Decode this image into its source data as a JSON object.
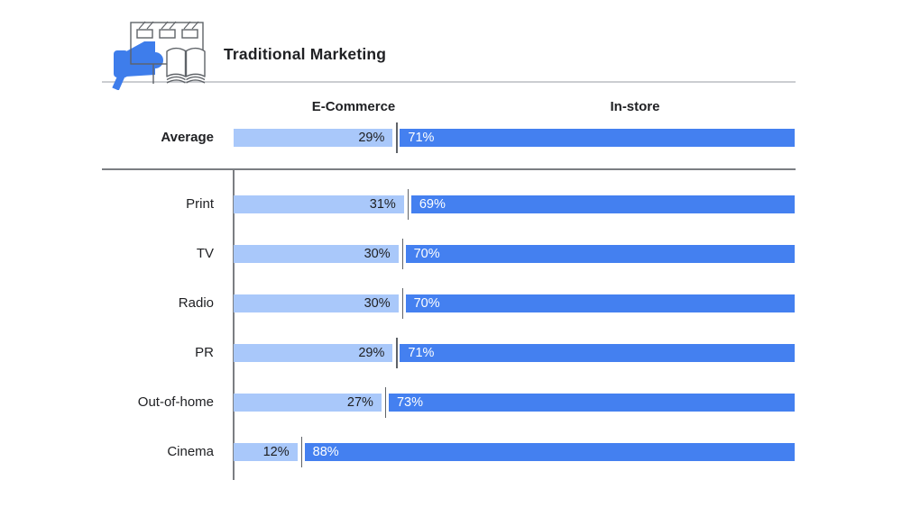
{
  "header": {
    "title": "Traditional Marketing"
  },
  "columns": {
    "ecommerce": "E-Commerce",
    "instore": "In-store"
  },
  "colors": {
    "ecommerce_bar": "#A9C8FA",
    "instore_bar": "#4480F0",
    "icon_accent": "#3E7DEB",
    "icon_outline": "#5f6368",
    "divider": "#5f6368",
    "value_on_light": "#1d1e20",
    "value_on_dark": "#ffffff"
  },
  "rows": [
    {
      "label": "Average",
      "emphasis": true,
      "ecommerce_pct": 29,
      "instore_pct": 71,
      "ecommerce_label": "29%",
      "instore_label": "71%"
    },
    {
      "label": "Print",
      "emphasis": false,
      "ecommerce_pct": 31,
      "instore_pct": 69,
      "ecommerce_label": "31%",
      "instore_label": "69%"
    },
    {
      "label": "TV",
      "emphasis": false,
      "ecommerce_pct": 30,
      "instore_pct": 70,
      "ecommerce_label": "30%",
      "instore_label": "70%"
    },
    {
      "label": "Radio",
      "emphasis": false,
      "ecommerce_pct": 30,
      "instore_pct": 70,
      "ecommerce_label": "30%",
      "instore_label": "70%"
    },
    {
      "label": "PR",
      "emphasis": false,
      "ecommerce_pct": 29,
      "instore_pct": 71,
      "ecommerce_label": "29%",
      "instore_label": "71%"
    },
    {
      "label": "Out-of-home",
      "emphasis": false,
      "ecommerce_pct": 27,
      "instore_pct": 73,
      "ecommerce_label": "27%",
      "instore_label": "73%"
    },
    {
      "label": "Cinema",
      "emphasis": false,
      "ecommerce_pct": 12,
      "instore_pct": 88,
      "ecommerce_label": "12%",
      "instore_label": "88%"
    }
  ],
  "chart_data": {
    "type": "bar",
    "orientation": "horizontal",
    "stacked": true,
    "title": "Traditional Marketing",
    "categories": [
      "Average",
      "Print",
      "TV",
      "Radio",
      "PR",
      "Out-of-home",
      "Cinema"
    ],
    "series": [
      {
        "name": "E-Commerce",
        "color": "#A9C8FA",
        "values": [
          29,
          31,
          30,
          30,
          29,
          27,
          12
        ]
      },
      {
        "name": "In-store",
        "color": "#4480F0",
        "values": [
          71,
          69,
          70,
          70,
          71,
          73,
          88
        ]
      }
    ],
    "value_format": "percent",
    "xlim": [
      0,
      100
    ],
    "legend_position": "top",
    "grid": false,
    "notes": "Average row is separated from the six category rows by a horizontal rule; every segment carries its percentage label."
  }
}
